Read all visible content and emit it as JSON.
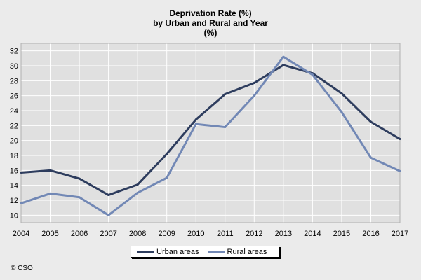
{
  "chart_data": {
    "type": "line",
    "title_lines": [
      "Deprivation Rate (%)",
      "by Urban and Rural and Year",
      "(%)"
    ],
    "x": [
      "2004",
      "2005",
      "2006",
      "2007",
      "2008",
      "2009",
      "2010",
      "2011",
      "2012",
      "2013",
      "2014",
      "2015",
      "2016",
      "2017"
    ],
    "series": [
      {
        "name": "Urban areas",
        "color": "#2e3d5e",
        "values": [
          15.7,
          16.0,
          14.9,
          12.7,
          14.1,
          18.2,
          22.8,
          26.2,
          27.7,
          30.1,
          29.0,
          26.3,
          22.5,
          20.2
        ]
      },
      {
        "name": "Rural areas",
        "color": "#7288b5",
        "values": [
          11.6,
          12.9,
          12.4,
          10.0,
          13.0,
          15.0,
          22.2,
          21.8,
          26.0,
          31.2,
          28.8,
          23.8,
          17.7,
          15.9
        ]
      }
    ],
    "y_ticks": [
      10,
      12,
      14,
      16,
      18,
      20,
      22,
      24,
      26,
      28,
      30,
      32
    ],
    "ylim": [
      9,
      33
    ],
    "grid": true,
    "legend_position": "bottom"
  },
  "footer": {
    "copyright": "© CSO"
  }
}
